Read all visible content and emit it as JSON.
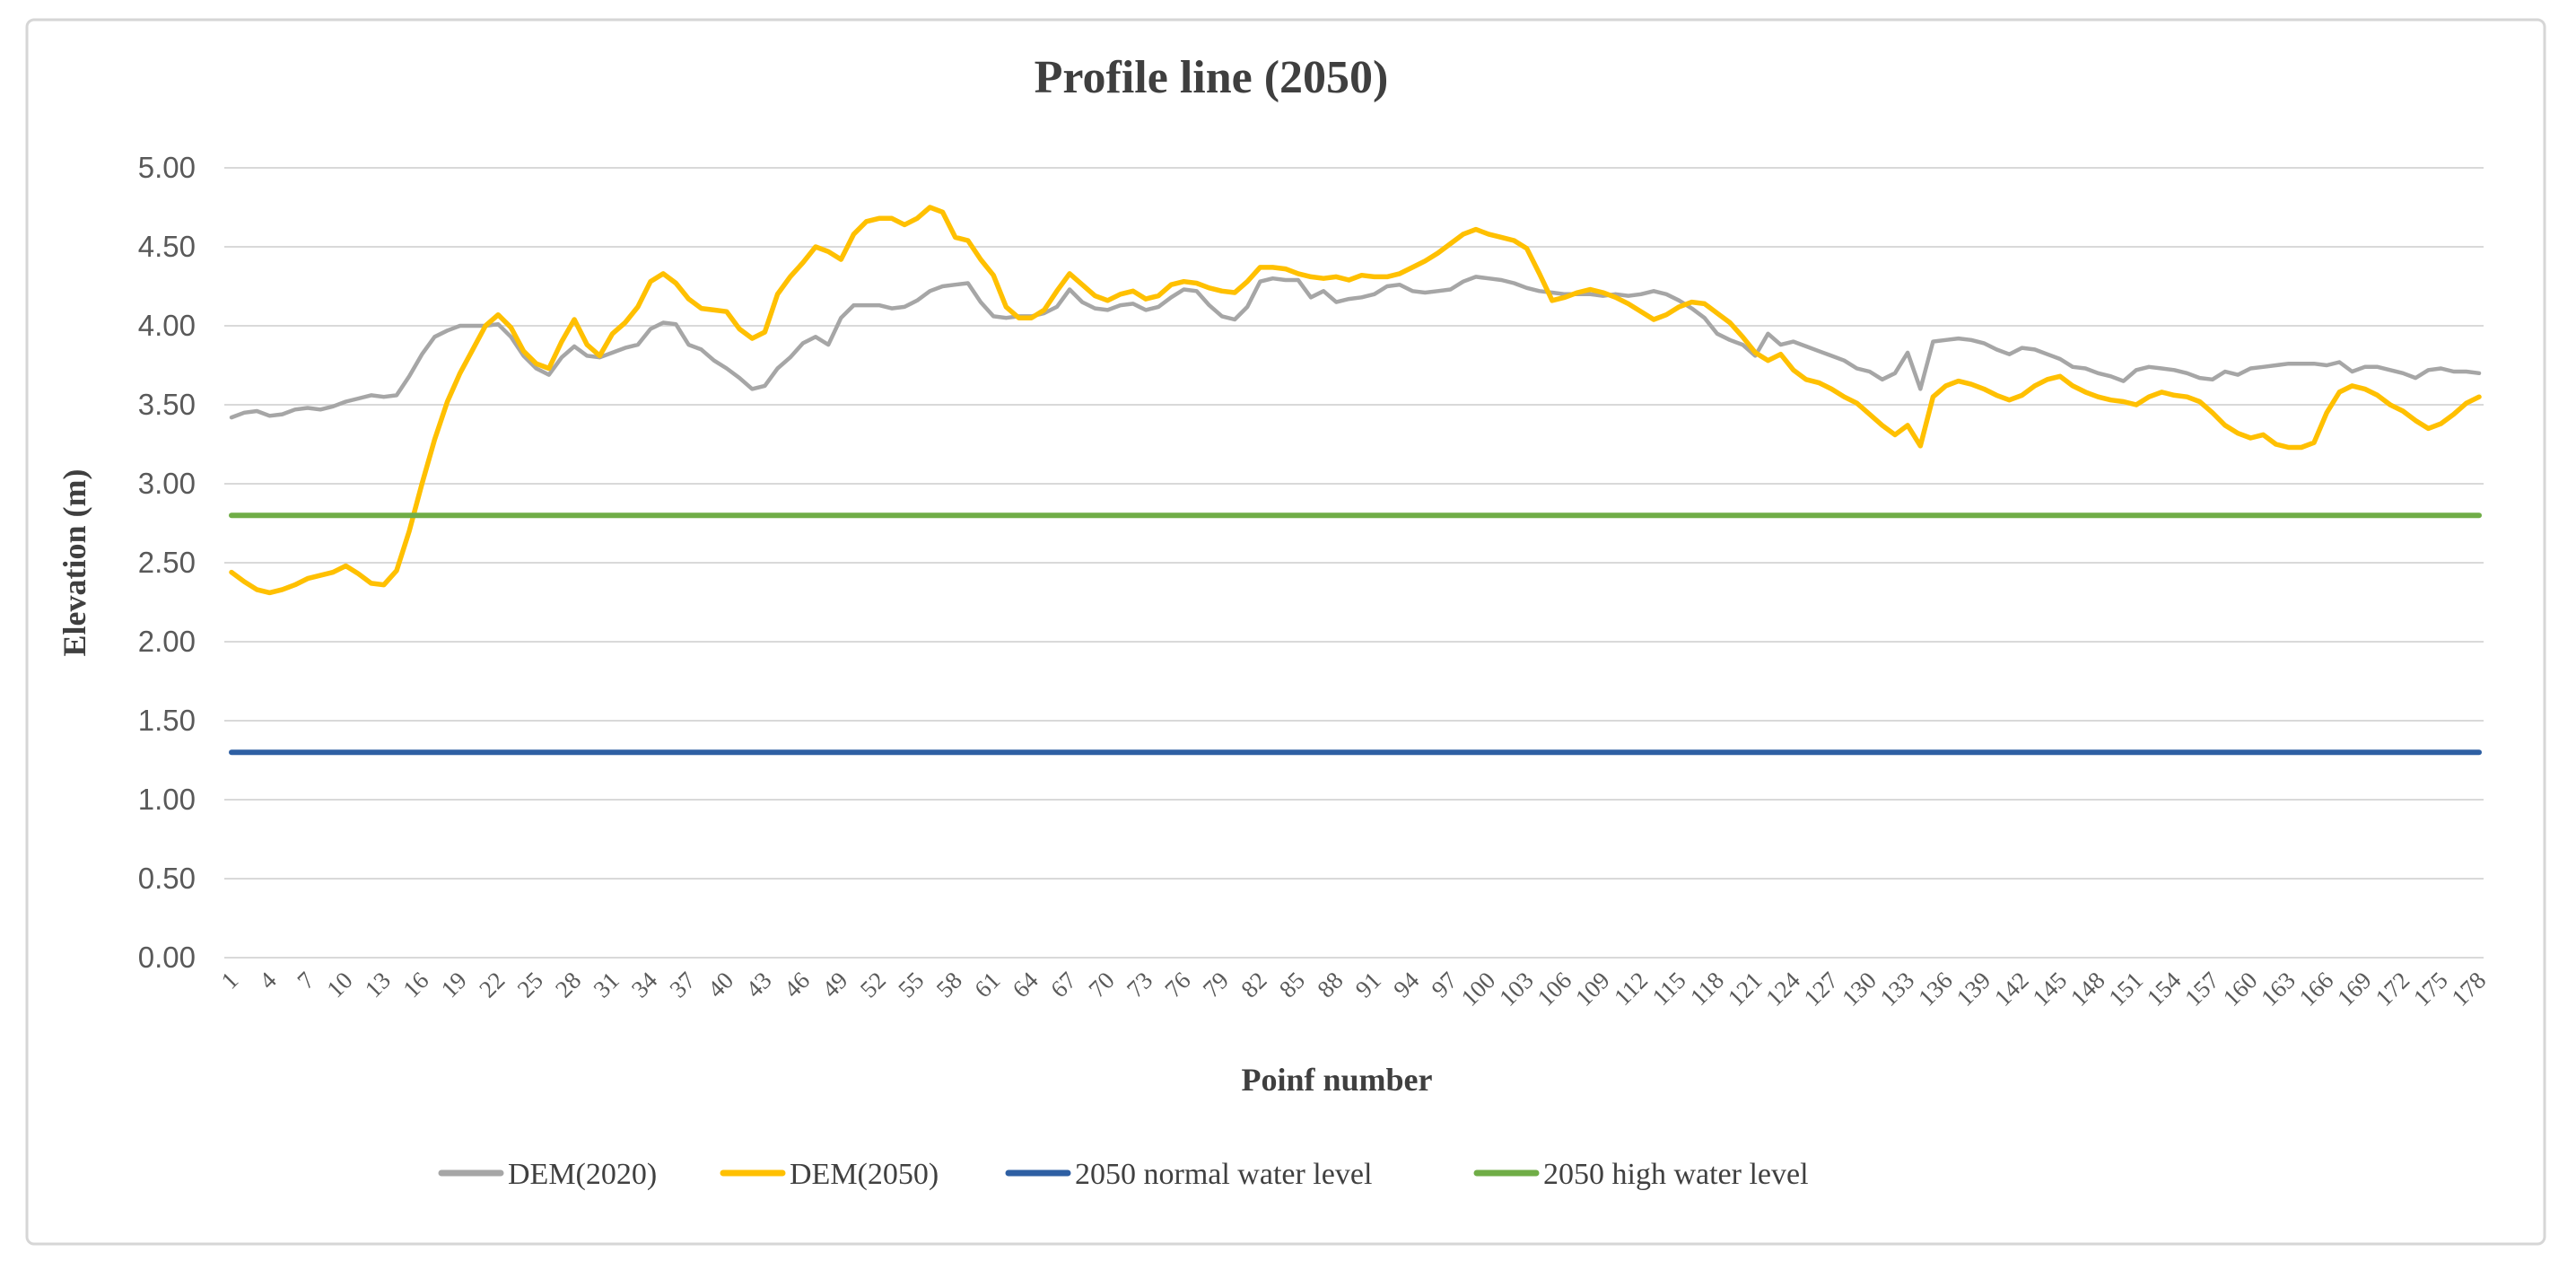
{
  "chart_data": {
    "type": "line",
    "title": "Profile line (2050)",
    "xlabel": "Poinf number",
    "ylabel": "Elevation (m)",
    "ylim": [
      0,
      5
    ],
    "y_tick_step": 0.5,
    "y_tick_labels": [
      "0.00",
      "0.50",
      "1.00",
      "1.50",
      "2.00",
      "2.50",
      "3.00",
      "3.50",
      "4.00",
      "4.50",
      "5.00"
    ],
    "grid": true,
    "legend_position": "bottom",
    "x_count": 178,
    "x_tick_labels": [
      "1",
      "4",
      "7",
      "10",
      "13",
      "16",
      "19",
      "22",
      "25",
      "28",
      "31",
      "34",
      "37",
      "40",
      "43",
      "46",
      "49",
      "52",
      "55",
      "58",
      "61",
      "64",
      "67",
      "70",
      "73",
      "76",
      "79",
      "82",
      "85",
      "88",
      "91",
      "94",
      "97",
      "100",
      "103",
      "106",
      "109",
      "112",
      "115",
      "118",
      "121",
      "124",
      "127",
      "130",
      "133",
      "136",
      "139",
      "142",
      "145",
      "148",
      "151",
      "154",
      "157",
      "160",
      "163",
      "166",
      "169",
      "172",
      "175",
      "178"
    ],
    "series": [
      {
        "name": "DEM(2020)",
        "color": "#a6a6a6",
        "width": 4.5,
        "values": [
          3.42,
          3.45,
          3.46,
          3.43,
          3.44,
          3.47,
          3.48,
          3.47,
          3.49,
          3.52,
          3.54,
          3.56,
          3.55,
          3.56,
          3.68,
          3.82,
          3.93,
          3.97,
          4.0,
          4.0,
          4.0,
          4.01,
          3.93,
          3.81,
          3.73,
          3.69,
          3.8,
          3.87,
          3.81,
          3.8,
          3.83,
          3.86,
          3.88,
          3.98,
          4.02,
          4.01,
          3.88,
          3.85,
          3.78,
          3.73,
          3.67,
          3.6,
          3.62,
          3.73,
          3.8,
          3.89,
          3.93,
          3.88,
          4.05,
          4.13,
          4.13,
          4.13,
          4.11,
          4.12,
          4.16,
          4.22,
          4.25,
          4.26,
          4.27,
          4.15,
          4.06,
          4.05,
          4.06,
          4.06,
          4.08,
          4.12,
          4.23,
          4.15,
          4.11,
          4.1,
          4.13,
          4.14,
          4.1,
          4.12,
          4.18,
          4.23,
          4.22,
          4.13,
          4.06,
          4.04,
          4.12,
          4.28,
          4.3,
          4.29,
          4.29,
          4.18,
          4.22,
          4.15,
          4.17,
          4.18,
          4.2,
          4.25,
          4.26,
          4.22,
          4.21,
          4.22,
          4.23,
          4.28,
          4.31,
          4.3,
          4.29,
          4.27,
          4.24,
          4.22,
          4.21,
          4.2,
          4.2,
          4.2,
          4.19,
          4.2,
          4.19,
          4.2,
          4.22,
          4.2,
          4.16,
          4.11,
          4.05,
          3.95,
          3.91,
          3.88,
          3.81,
          3.95,
          3.88,
          3.9,
          3.87,
          3.84,
          3.81,
          3.78,
          3.73,
          3.71,
          3.66,
          3.7,
          3.83,
          3.6,
          3.9,
          3.91,
          3.92,
          3.91,
          3.89,
          3.85,
          3.82,
          3.86,
          3.85,
          3.82,
          3.79,
          3.74,
          3.73,
          3.7,
          3.68,
          3.65,
          3.72,
          3.74,
          3.73,
          3.72,
          3.7,
          3.67,
          3.66,
          3.71,
          3.69,
          3.73,
          3.74,
          3.75,
          3.76,
          3.76,
          3.76,
          3.75,
          3.77,
          3.71,
          3.74,
          3.74,
          3.72,
          3.7,
          3.67,
          3.72,
          3.73,
          3.71,
          3.71,
          3.7
        ]
      },
      {
        "name": "DEM(2050)",
        "color": "#ffc000",
        "width": 5.5,
        "values": [
          2.44,
          2.38,
          2.33,
          2.31,
          2.33,
          2.36,
          2.4,
          2.42,
          2.44,
          2.48,
          2.43,
          2.37,
          2.36,
          2.45,
          2.7,
          3.0,
          3.28,
          3.52,
          3.7,
          3.85,
          4.0,
          4.07,
          3.99,
          3.84,
          3.76,
          3.73,
          3.9,
          4.04,
          3.88,
          3.81,
          3.95,
          4.02,
          4.12,
          4.28,
          4.33,
          4.27,
          4.17,
          4.11,
          4.1,
          4.09,
          3.98,
          3.92,
          3.96,
          4.2,
          4.31,
          4.4,
          4.5,
          4.47,
          4.42,
          4.58,
          4.66,
          4.68,
          4.68,
          4.64,
          4.68,
          4.75,
          4.72,
          4.56,
          4.54,
          4.42,
          4.32,
          4.12,
          4.05,
          4.05,
          4.1,
          4.22,
          4.33,
          4.26,
          4.19,
          4.16,
          4.2,
          4.22,
          4.17,
          4.19,
          4.26,
          4.28,
          4.27,
          4.24,
          4.22,
          4.21,
          4.28,
          4.37,
          4.37,
          4.36,
          4.33,
          4.31,
          4.3,
          4.31,
          4.29,
          4.32,
          4.31,
          4.31,
          4.33,
          4.37,
          4.41,
          4.46,
          4.52,
          4.58,
          4.61,
          4.58,
          4.56,
          4.54,
          4.49,
          4.33,
          4.16,
          4.18,
          4.21,
          4.23,
          4.21,
          4.18,
          4.14,
          4.09,
          4.04,
          4.07,
          4.12,
          4.15,
          4.14,
          4.08,
          4.02,
          3.93,
          3.83,
          3.78,
          3.82,
          3.72,
          3.66,
          3.64,
          3.6,
          3.55,
          3.51,
          3.44,
          3.37,
          3.31,
          3.37,
          3.24,
          3.55,
          3.62,
          3.65,
          3.63,
          3.6,
          3.56,
          3.53,
          3.56,
          3.62,
          3.66,
          3.68,
          3.62,
          3.58,
          3.55,
          3.53,
          3.52,
          3.5,
          3.55,
          3.58,
          3.56,
          3.55,
          3.52,
          3.45,
          3.37,
          3.32,
          3.29,
          3.31,
          3.25,
          3.23,
          3.23,
          3.26,
          3.45,
          3.58,
          3.62,
          3.6,
          3.56,
          3.5,
          3.46,
          3.4,
          3.35,
          3.38,
          3.44,
          3.51,
          3.55
        ]
      },
      {
        "name": "2050 normal water level",
        "color": "#2e5fa3",
        "width": 6,
        "constant": 1.3
      },
      {
        "name": "2050 high water level",
        "color": "#70ad47",
        "width": 6,
        "constant": 2.8
      }
    ]
  }
}
